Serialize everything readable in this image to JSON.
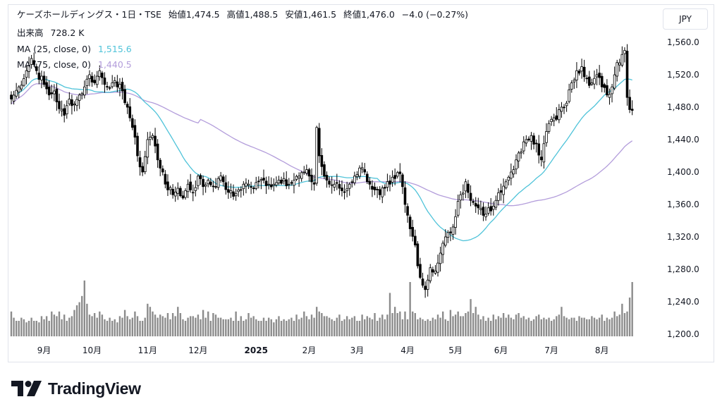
{
  "header": {
    "symbol": "ケーズホールディングス・1日・TSE",
    "open_label": "始値",
    "open": "1,474.5",
    "high_label": "高値",
    "high": "1,488.5",
    "low_label": "安値",
    "low": "1,461.5",
    "close_label": "終値",
    "close": "1,476.0",
    "change": "−4.0 (−0.27%)",
    "volume_label": "出来高",
    "volume": "728.2 K",
    "ma25_label": "MA (25, close, 0)",
    "ma25_value": "1,515.6",
    "ma75_label": "MA (75, close, 0)",
    "ma75_value": "1,440.5"
  },
  "currency_button": "JPY",
  "logo_text": "TradingView",
  "colors": {
    "up": "#ffffff",
    "down": "#000000",
    "ma25": "#4fc3d9",
    "ma75": "#b39ddb",
    "volume": "#8c8c8c"
  },
  "chart_data": {
    "type": "candlestick",
    "y_axis": {
      "min": 1200,
      "max": 1580,
      "ticks": [
        1200,
        1240,
        1280,
        1320,
        1360,
        1400,
        1440,
        1480,
        1520,
        1560
      ],
      "tick_labels": [
        "1,200.0",
        "1,240.0",
        "1,280.0",
        "1,320.0",
        "1,360.0",
        "1,400.0",
        "1,440.0",
        "1,480.0",
        "1,520.0",
        "1,560.0"
      ]
    },
    "x_axis": {
      "labels": [
        "9月",
        "10月",
        "11月",
        "12月",
        "2025",
        "2月",
        "3月",
        "4月",
        "5月",
        "6月",
        "7月",
        "8月"
      ],
      "bold_labels": [
        "2025"
      ],
      "label_bar_index": [
        13,
        32,
        54,
        74,
        97,
        118,
        137,
        157,
        176,
        194,
        214,
        234
      ]
    },
    "grid": false,
    "anchors": [
      [
        0,
        1490
      ],
      [
        3,
        1505
      ],
      [
        6,
        1525
      ],
      [
        8,
        1540
      ],
      [
        10,
        1525
      ],
      [
        13,
        1508
      ],
      [
        15,
        1495
      ],
      [
        17,
        1500
      ],
      [
        19,
        1478
      ],
      [
        21,
        1470
      ],
      [
        23,
        1490
      ],
      [
        25,
        1484
      ],
      [
        27,
        1495
      ],
      [
        29,
        1505
      ],
      [
        31,
        1520
      ],
      [
        33,
        1510
      ],
      [
        35,
        1525
      ],
      [
        37,
        1508
      ],
      [
        40,
        1510
      ],
      [
        42,
        1505
      ],
      [
        44,
        1500
      ],
      [
        46,
        1480
      ],
      [
        48,
        1455
      ],
      [
        50,
        1420
      ],
      [
        52,
        1400
      ],
      [
        54,
        1440
      ],
      [
        56,
        1445
      ],
      [
        58,
        1415
      ],
      [
        60,
        1400
      ],
      [
        62,
        1378
      ],
      [
        64,
        1372
      ],
      [
        66,
        1380
      ],
      [
        68,
        1368
      ],
      [
        70,
        1385
      ],
      [
        72,
        1375
      ],
      [
        74,
        1395
      ],
      [
        76,
        1382
      ],
      [
        78,
        1390
      ],
      [
        80,
        1382
      ],
      [
        82,
        1392
      ],
      [
        84,
        1388
      ],
      [
        86,
        1375
      ],
      [
        88,
        1370
      ],
      [
        90,
        1378
      ],
      [
        92,
        1385
      ],
      [
        94,
        1385
      ],
      [
        96,
        1380
      ],
      [
        98,
        1388
      ],
      [
        100,
        1390
      ],
      [
        102,
        1385
      ],
      [
        104,
        1385
      ],
      [
        106,
        1390
      ],
      [
        108,
        1392
      ],
      [
        110,
        1385
      ],
      [
        112,
        1390
      ],
      [
        114,
        1395
      ],
      [
        116,
        1400
      ],
      [
        118,
        1395
      ],
      [
        120,
        1385
      ],
      [
        121,
        1455
      ],
      [
        122,
        1420
      ],
      [
        124,
        1395
      ],
      [
        126,
        1385
      ],
      [
        128,
        1385
      ],
      [
        130,
        1380
      ],
      [
        132,
        1375
      ],
      [
        134,
        1385
      ],
      [
        136,
        1395
      ],
      [
        138,
        1405
      ],
      [
        140,
        1400
      ],
      [
        142,
        1385
      ],
      [
        144,
        1378
      ],
      [
        146,
        1372
      ],
      [
        148,
        1380
      ],
      [
        150,
        1385
      ],
      [
        152,
        1392
      ],
      [
        154,
        1398
      ],
      [
        156,
        1360
      ],
      [
        158,
        1330
      ],
      [
        160,
        1310
      ],
      [
        162,
        1270
      ],
      [
        164,
        1255
      ],
      [
        166,
        1282
      ],
      [
        168,
        1278
      ],
      [
        170,
        1300
      ],
      [
        172,
        1320
      ],
      [
        174,
        1325
      ],
      [
        176,
        1345
      ],
      [
        178,
        1372
      ],
      [
        180,
        1388
      ],
      [
        182,
        1365
      ],
      [
        184,
        1358
      ],
      [
        186,
        1355
      ],
      [
        188,
        1348
      ],
      [
        190,
        1352
      ],
      [
        192,
        1365
      ],
      [
        194,
        1375
      ],
      [
        196,
        1388
      ],
      [
        198,
        1400
      ],
      [
        200,
        1415
      ],
      [
        202,
        1425
      ],
      [
        204,
        1440
      ],
      [
        206,
        1445
      ],
      [
        208,
        1435
      ],
      [
        210,
        1415
      ],
      [
        212,
        1450
      ],
      [
        214,
        1465
      ],
      [
        216,
        1465
      ],
      [
        218,
        1480
      ],
      [
        220,
        1485
      ],
      [
        222,
        1510
      ],
      [
        224,
        1525
      ],
      [
        226,
        1530
      ],
      [
        228,
        1515
      ],
      [
        230,
        1510
      ],
      [
        232,
        1520
      ],
      [
        234,
        1505
      ],
      [
        236,
        1495
      ],
      [
        238,
        1505
      ],
      [
        240,
        1535
      ],
      [
        242,
        1545
      ],
      [
        243,
        1550
      ],
      [
        244,
        1492
      ],
      [
        245,
        1477
      ],
      [
        246,
        1476
      ]
    ],
    "volume_levels": [
      1.6,
      1.2,
      1.0,
      1.0,
      1.2,
      1.1,
      0.9,
      1.0,
      1.2,
      1.0,
      1.0,
      0.9,
      1.3,
      1.1,
      1.3,
      1.0,
      1.6,
      1.4,
      1.3,
      1.6,
      1.1,
      1.4,
      1.0,
      1.2,
      1.3,
      1.7,
      2.0,
      2.2,
      2.6,
      3.6,
      2.1,
      1.4,
      1.3,
      1.5,
      1.2,
      1.6,
      1.4,
      1.1,
      1.0,
      1.2,
      1.0,
      1.1,
      0.9,
      1.3,
      1.2,
      1.7,
      1.3,
      1.1,
      1.2,
      1.6,
      1.3,
      1.0,
      1.0,
      1.2,
      2.1,
      1.9,
      1.6,
      1.4,
      1.2,
      1.4,
      1.3,
      1.2,
      1.5,
      1.1,
      1.5,
      1.3,
      1.9,
      1.5,
      1.1,
      1.0,
      1.2,
      1.3,
      1.3,
      1.2,
      1.4,
      1.1,
      1.7,
      1.2,
      1.6,
      1.0,
      1.5,
      1.4,
      1.2,
      1.2,
      1.1,
      1.1,
      1.1,
      1.2,
      1.0,
      1.6,
      1.0,
      1.3,
      1.0,
      1.1,
      1.5,
      1.2,
      1.3,
      1.1,
      1.0,
      1.0,
      1.2,
      1.0,
      1.2,
      1.1,
      0.9,
      1.1,
      1.3,
      1.0,
      1.1,
      1.0,
      1.1,
      1.2,
      1.0,
      1.4,
      1.1,
      1.2,
      1.6,
      1.3,
      1.1,
      1.4,
      1.2,
      1.9,
      1.6,
      1.5,
      1.3,
      1.3,
      1.2,
      1.1,
      1.0,
      1.2,
      1.4,
      1.0,
      1.1,
      1.3,
      1.1,
      1.2,
      1.3,
      1.0,
      1.0,
      1.4,
      1.1,
      1.3,
      1.2,
      1.1,
      1.5,
      1.0,
      1.2,
      1.4,
      1.1,
      1.4,
      2.8,
      1.5,
      1.9,
      1.5,
      1.6,
      1.1,
      1.6,
      1.1,
      3.5,
      1.6,
      1.5,
      1.1,
      1.2,
      1.1,
      1.0,
      1.1,
      1.0,
      1.2,
      1.1,
      1.4,
      1.2,
      1.6,
      1.1,
      1.0,
      1.7,
      1.3,
      1.4,
      1.6,
      1.3,
      1.3,
      1.5,
      1.6,
      2.4,
      1.5,
      1.9,
      1.4,
      1.1,
      1.3,
      1.0,
      1.2,
      1.0,
      1.4,
      1.1,
      1.3,
      1.2,
      1.5,
      1.2,
      1.4,
      1.2,
      1.1,
      1.4,
      1.5,
      1.2,
      1.3,
      1.1,
      1.2,
      1.0,
      1.1,
      1.3,
      1.4,
      1.1,
      1.2,
      1.1,
      1.2,
      1.0,
      1.1,
      1.3,
      1.4,
      1.9,
      1.3,
      1.2,
      1.1,
      1.2,
      1.2,
      1.0,
      1.3,
      1.2,
      1.2,
      1.1,
      1.1,
      1.3,
      1.2,
      1.1,
      1.2,
      1.4,
      1.0,
      1.2,
      1.1,
      1.2,
      1.6,
      1.3,
      1.4,
      2.1,
      1.5,
      1.6,
      2.5,
      3.5,
      2.1,
      1.0
    ]
  }
}
